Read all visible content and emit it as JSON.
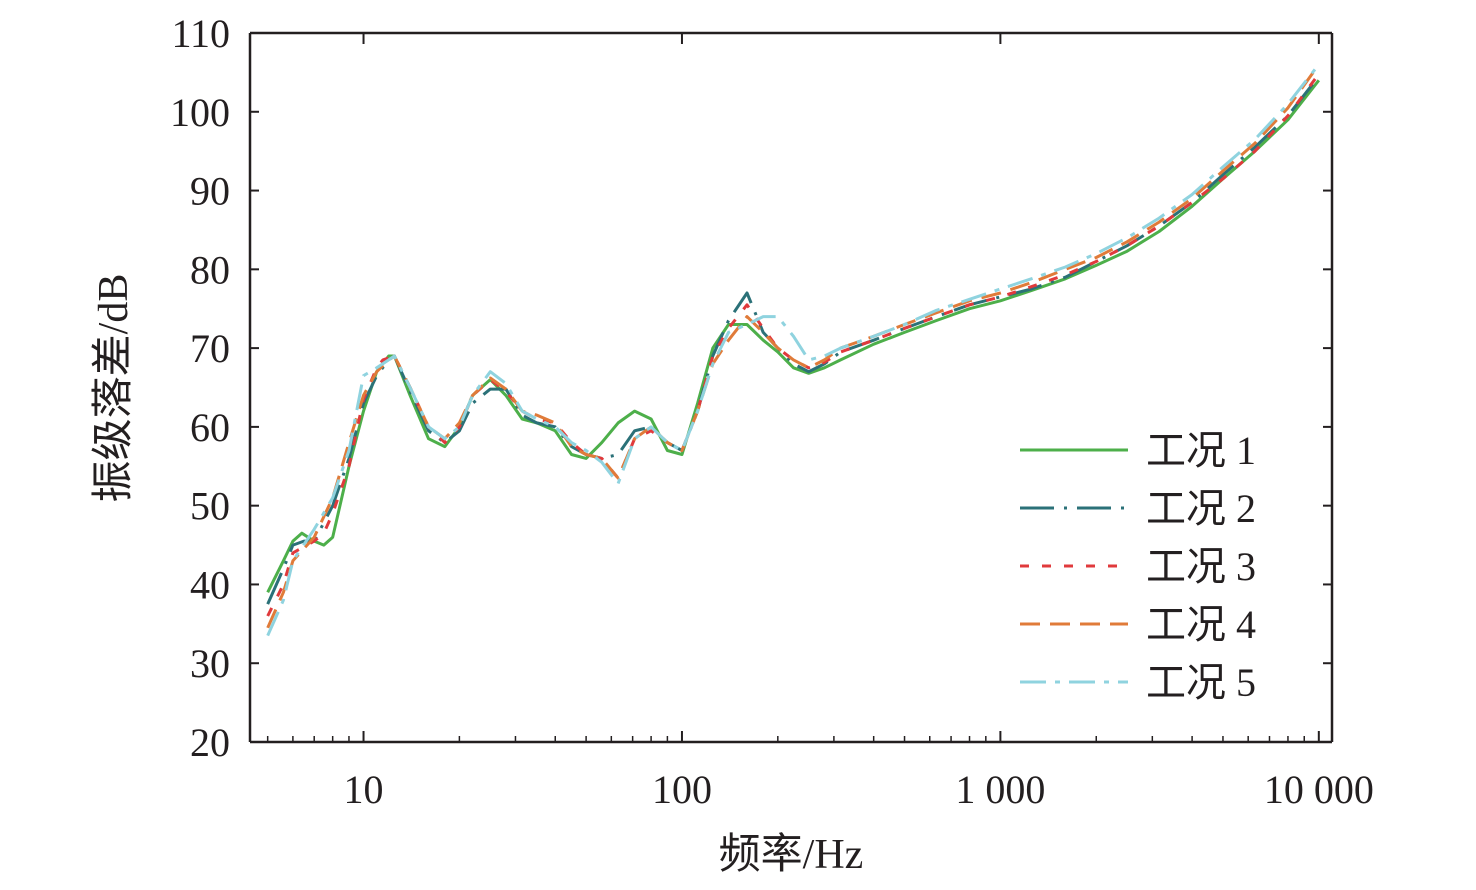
{
  "chart_data": {
    "type": "line",
    "title": "",
    "xlabel": "频率/Hz",
    "ylabel": "振级落差/dB",
    "xscale": "log",
    "xlim": [
      4.4,
      11000
    ],
    "ylim": [
      20,
      110
    ],
    "xticks": [
      10,
      100,
      1000,
      10000
    ],
    "xtick_labels": [
      "10",
      "100",
      "1 000",
      "10 000"
    ],
    "yticks": [
      20,
      30,
      40,
      50,
      60,
      70,
      80,
      90,
      100,
      110
    ],
    "ytick_labels": [
      "20",
      "30",
      "40",
      "50",
      "60",
      "70",
      "80",
      "90",
      "100",
      "110"
    ],
    "grid": false,
    "legend_position": "bottom-right",
    "series": [
      {
        "name": "工况 1",
        "color": "#4daf4a",
        "dash": "solid",
        "points": [
          [
            5,
            39
          ],
          [
            5.6,
            43
          ],
          [
            6,
            45.5
          ],
          [
            6.4,
            46.5
          ],
          [
            7,
            45.5
          ],
          [
            7.5,
            45
          ],
          [
            8,
            46
          ],
          [
            9,
            55
          ],
          [
            10,
            62
          ],
          [
            11,
            67
          ],
          [
            12,
            69
          ],
          [
            12.5,
            69
          ],
          [
            14,
            64
          ],
          [
            16,
            58.5
          ],
          [
            18,
            57.5
          ],
          [
            20,
            60
          ],
          [
            22,
            64
          ],
          [
            25,
            66
          ],
          [
            28,
            64
          ],
          [
            31.5,
            61
          ],
          [
            35,
            60.5
          ],
          [
            40,
            59.5
          ],
          [
            45,
            56.5
          ],
          [
            50,
            56
          ],
          [
            56,
            58
          ],
          [
            63,
            60.5
          ],
          [
            71,
            62
          ],
          [
            80,
            61
          ],
          [
            90,
            57
          ],
          [
            100,
            56.5
          ],
          [
            112,
            63
          ],
          [
            125,
            70
          ],
          [
            140,
            73
          ],
          [
            160,
            73
          ],
          [
            180,
            71
          ],
          [
            200,
            69.5
          ],
          [
            224,
            67.5
          ],
          [
            250,
            66.8
          ],
          [
            280,
            67.5
          ],
          [
            315,
            68.5
          ],
          [
            400,
            70.5
          ],
          [
            500,
            72
          ],
          [
            630,
            73.5
          ],
          [
            800,
            75
          ],
          [
            1000,
            76
          ],
          [
            1250,
            77.3
          ],
          [
            1600,
            78.8
          ],
          [
            2000,
            80.5
          ],
          [
            2500,
            82.3
          ],
          [
            3150,
            84.8
          ],
          [
            4000,
            88
          ],
          [
            5000,
            91.5
          ],
          [
            6300,
            95
          ],
          [
            8000,
            99
          ],
          [
            10000,
            104
          ]
        ]
      },
      {
        "name": "工况 2",
        "color": "#2b7178",
        "dash": "longdashdot",
        "points": [
          [
            5,
            37.5
          ],
          [
            5.6,
            42
          ],
          [
            6,
            45
          ],
          [
            6.5,
            45.5
          ],
          [
            7,
            45.5
          ],
          [
            8,
            50
          ],
          [
            9,
            56
          ],
          [
            10,
            63
          ],
          [
            11,
            66.5
          ],
          [
            12,
            68.5
          ],
          [
            12.5,
            69
          ],
          [
            14,
            64.5
          ],
          [
            16,
            59.5
          ],
          [
            18,
            58
          ],
          [
            20,
            59.5
          ],
          [
            22,
            63
          ],
          [
            25,
            64.8
          ],
          [
            28,
            64.8
          ],
          [
            31.5,
            61.5
          ],
          [
            35,
            60.5
          ],
          [
            40,
            60
          ],
          [
            45,
            57.5
          ],
          [
            50,
            56.5
          ],
          [
            56,
            56
          ],
          [
            63,
            56.5
          ],
          [
            71,
            59.5
          ],
          [
            80,
            60
          ],
          [
            90,
            58
          ],
          [
            100,
            57
          ],
          [
            112,
            62
          ],
          [
            125,
            69
          ],
          [
            140,
            73.5
          ],
          [
            160,
            77
          ],
          [
            180,
            72
          ],
          [
            200,
            70
          ],
          [
            224,
            68
          ],
          [
            250,
            67
          ],
          [
            280,
            68
          ],
          [
            315,
            69.5
          ],
          [
            400,
            71
          ],
          [
            500,
            72.5
          ],
          [
            630,
            74
          ],
          [
            800,
            75.5
          ],
          [
            1000,
            76.5
          ],
          [
            1250,
            77.5
          ],
          [
            1600,
            79
          ],
          [
            2000,
            81
          ],
          [
            2500,
            83
          ],
          [
            3150,
            85.5
          ],
          [
            4000,
            88.5
          ],
          [
            5000,
            92
          ],
          [
            6300,
            95.5
          ],
          [
            8000,
            99.5
          ],
          [
            10000,
            104.5
          ]
        ]
      },
      {
        "name": "工况 3",
        "color": "#e03a3c",
        "dash": "shortdash",
        "points": [
          [
            5,
            36
          ],
          [
            5.6,
            40
          ],
          [
            6,
            44
          ],
          [
            7,
            45.5
          ],
          [
            7.5,
            46.5
          ],
          [
            8,
            49
          ],
          [
            9,
            55
          ],
          [
            10,
            63.5
          ],
          [
            11,
            67.5
          ],
          [
            11.5,
            68.5
          ],
          [
            12.5,
            69
          ],
          [
            14,
            65
          ],
          [
            16,
            60
          ],
          [
            18,
            58
          ],
          [
            20,
            60
          ],
          [
            22,
            64
          ],
          [
            25,
            66
          ],
          [
            28,
            64.5
          ],
          [
            31.5,
            62
          ],
          [
            35,
            61
          ],
          [
            40,
            60.5
          ],
          [
            45,
            58
          ],
          [
            50,
            56.5
          ],
          [
            56,
            56
          ],
          [
            63,
            53.5
          ],
          [
            71,
            58.5
          ],
          [
            80,
            59.5
          ],
          [
            90,
            58
          ],
          [
            100,
            57
          ],
          [
            112,
            62
          ],
          [
            125,
            69
          ],
          [
            140,
            72.5
          ],
          [
            160,
            75.5
          ],
          [
            180,
            72.5
          ],
          [
            200,
            70
          ],
          [
            224,
            68.5
          ],
          [
            250,
            67.5
          ],
          [
            280,
            68.2
          ],
          [
            315,
            69.5
          ],
          [
            400,
            71
          ],
          [
            500,
            72.5
          ],
          [
            630,
            74
          ],
          [
            800,
            75.5
          ],
          [
            1000,
            76.5
          ],
          [
            1250,
            77.8
          ],
          [
            1600,
            79.3
          ],
          [
            2000,
            81
          ],
          [
            2500,
            83
          ],
          [
            3150,
            85.5
          ],
          [
            4000,
            88.5
          ],
          [
            5000,
            91.5
          ],
          [
            6300,
            95
          ],
          [
            8000,
            99.5
          ],
          [
            10000,
            104.8
          ]
        ]
      },
      {
        "name": "工况 4",
        "color": "#e07b39",
        "dash": "dashed",
        "points": [
          [
            5,
            34.5
          ],
          [
            5.6,
            39
          ],
          [
            6,
            43
          ],
          [
            7,
            46
          ],
          [
            8,
            51
          ],
          [
            9,
            58
          ],
          [
            10,
            64
          ],
          [
            11,
            67
          ],
          [
            12,
            68.5
          ],
          [
            12.5,
            69
          ],
          [
            14,
            65
          ],
          [
            16,
            60
          ],
          [
            18,
            58.5
          ],
          [
            20,
            60.5
          ],
          [
            22,
            64
          ],
          [
            25,
            66.2
          ],
          [
            28,
            64.8
          ],
          [
            31.5,
            62
          ],
          [
            35,
            61.5
          ],
          [
            40,
            60.5
          ],
          [
            45,
            57.5
          ],
          [
            50,
            56.5
          ],
          [
            56,
            56
          ],
          [
            63,
            53.5
          ],
          [
            71,
            58.5
          ],
          [
            80,
            60
          ],
          [
            90,
            58
          ],
          [
            100,
            57
          ],
          [
            112,
            62
          ],
          [
            125,
            68
          ],
          [
            140,
            71
          ],
          [
            160,
            74
          ],
          [
            180,
            72
          ],
          [
            200,
            70
          ],
          [
            224,
            68.5
          ],
          [
            250,
            67.5
          ],
          [
            280,
            68.5
          ],
          [
            315,
            70
          ],
          [
            400,
            71.5
          ],
          [
            500,
            73
          ],
          [
            630,
            74.5
          ],
          [
            800,
            76
          ],
          [
            1000,
            77
          ],
          [
            1250,
            78.3
          ],
          [
            1600,
            80
          ],
          [
            2000,
            81.5
          ],
          [
            2500,
            83.5
          ],
          [
            3150,
            86
          ],
          [
            4000,
            89
          ],
          [
            5000,
            92.5
          ],
          [
            6300,
            96
          ],
          [
            8000,
            100.5
          ],
          [
            10000,
            106
          ]
        ]
      },
      {
        "name": "工况 5",
        "color": "#8fd3df",
        "dash": "dashdot",
        "points": [
          [
            5,
            33.5
          ],
          [
            5.6,
            38
          ],
          [
            6,
            43
          ],
          [
            7,
            47
          ],
          [
            8,
            51
          ],
          [
            9,
            57
          ],
          [
            10,
            66.5
          ],
          [
            11,
            67.5
          ],
          [
            12,
            68.5
          ],
          [
            12.5,
            69
          ],
          [
            14,
            65
          ],
          [
            16,
            60
          ],
          [
            18,
            58.5
          ],
          [
            20,
            60
          ],
          [
            22,
            64
          ],
          [
            25,
            67
          ],
          [
            28,
            65.5
          ],
          [
            31.5,
            62
          ],
          [
            35,
            61
          ],
          [
            40,
            60
          ],
          [
            45,
            58
          ],
          [
            50,
            57
          ],
          [
            56,
            55.5
          ],
          [
            63,
            52.8
          ],
          [
            71,
            58.5
          ],
          [
            80,
            60
          ],
          [
            90,
            58
          ],
          [
            100,
            57
          ],
          [
            112,
            62
          ],
          [
            125,
            68
          ],
          [
            140,
            72
          ],
          [
            160,
            73
          ],
          [
            180,
            74
          ],
          [
            200,
            74
          ],
          [
            224,
            71.5
          ],
          [
            250,
            68.5
          ],
          [
            280,
            69
          ],
          [
            315,
            70
          ],
          [
            400,
            71.5
          ],
          [
            500,
            73
          ],
          [
            630,
            74.8
          ],
          [
            800,
            76.2
          ],
          [
            1000,
            77.5
          ],
          [
            1250,
            78.8
          ],
          [
            1600,
            80.3
          ],
          [
            2000,
            82
          ],
          [
            2500,
            84
          ],
          [
            3150,
            86.5
          ],
          [
            4000,
            89.5
          ],
          [
            5000,
            93
          ],
          [
            6300,
            96.5
          ],
          [
            8000,
            101
          ],
          [
            10000,
            106
          ]
        ]
      }
    ]
  }
}
